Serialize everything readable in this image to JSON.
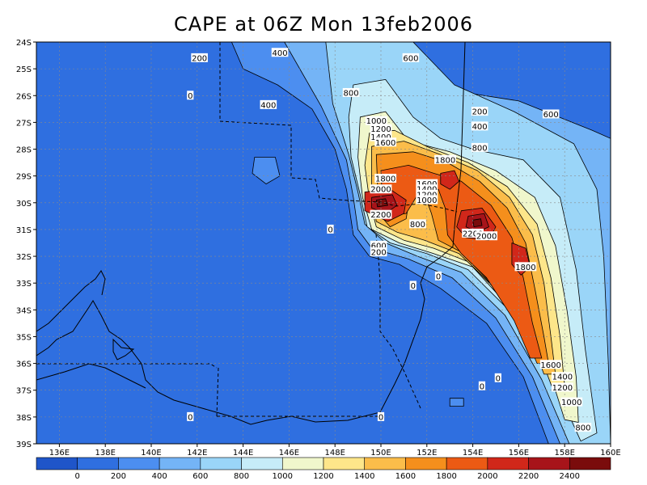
{
  "chart_data": {
    "type": "heatmap",
    "title": "CAPE at 06Z Mon 13feb2006",
    "xlabel": "",
    "ylabel": "",
    "x_ticks": [
      "136E",
      "138E",
      "140E",
      "142E",
      "144E",
      "146E",
      "148E",
      "150E",
      "152E",
      "154E",
      "156E",
      "158E",
      "160E"
    ],
    "y_ticks": [
      "24S",
      "25S",
      "26S",
      "27S",
      "28S",
      "29S",
      "30S",
      "31S",
      "32S",
      "33S",
      "34S",
      "35S",
      "36S",
      "37S",
      "38S",
      "39S"
    ],
    "xlim": [
      135,
      160
    ],
    "ylim": [
      -39,
      -24
    ],
    "grid": true,
    "colorbar": {
      "levels": [
        "0",
        "200",
        "400",
        "600",
        "800",
        "1000",
        "1200",
        "1400",
        "1600",
        "1800",
        "2000",
        "2200",
        "2400"
      ],
      "colors": [
        "#1f55c9",
        "#2f6fe0",
        "#4c8ef0",
        "#74b4f6",
        "#9ad5f8",
        "#c6ecf8",
        "#f0f7cc",
        "#fde68a",
        "#fbbd4a",
        "#f58f1c",
        "#ec5a14",
        "#d1271a",
        "#a7141a",
        "#7a0c0c"
      ]
    },
    "regions": [
      {
        "value": 0,
        "points": [
          [
            135,
            -39
          ],
          [
            160,
            -39
          ],
          [
            160,
            -24
          ],
          [
            135,
            -24
          ]
        ]
      },
      {
        "value": 200,
        "points": [
          [
            143.5,
            -24
          ],
          [
            150.2,
            -24
          ],
          [
            152.5,
            -26
          ],
          [
            155.2,
            -27
          ],
          [
            158.5,
            -28
          ],
          [
            160,
            -28.5
          ],
          [
            160,
            -39
          ],
          [
            157.3,
            -39
          ],
          [
            156.2,
            -36.5
          ],
          [
            154.6,
            -34.5
          ],
          [
            152.6,
            -33.2
          ],
          [
            150.8,
            -32.3
          ],
          [
            149.5,
            -32
          ],
          [
            148.8,
            -31.2
          ],
          [
            148.5,
            -29.5
          ],
          [
            148,
            -28
          ],
          [
            147,
            -26.5
          ],
          [
            145.5,
            -25.6
          ],
          [
            144,
            -25
          ]
        ]
      },
      {
        "value": 400,
        "points": [
          [
            145.8,
            -24
          ],
          [
            150.8,
            -24
          ],
          [
            153,
            -25.8
          ],
          [
            156,
            -26.2
          ],
          [
            159.2,
            -27.3
          ],
          [
            160,
            -27.6
          ],
          [
            160,
            -39
          ],
          [
            157.8,
            -39
          ],
          [
            156.6,
            -36.5
          ],
          [
            155,
            -34.3
          ],
          [
            153.1,
            -32.8
          ],
          [
            151.2,
            -32.1
          ],
          [
            149.6,
            -31.7
          ],
          [
            149,
            -31
          ],
          [
            148.8,
            -29.8
          ],
          [
            148.5,
            -28.4
          ],
          [
            147.4,
            -26.4
          ]
        ]
      },
      {
        "value": 600,
        "points": [
          [
            147.6,
            -24
          ],
          [
            151.4,
            -24
          ],
          [
            153.2,
            -25.6
          ],
          [
            155.8,
            -26.6
          ],
          [
            158.4,
            -27.8
          ],
          [
            159.4,
            -29.5
          ],
          [
            159.7,
            -32
          ],
          [
            159.9,
            -36
          ],
          [
            160,
            -39
          ],
          [
            158.2,
            -39
          ],
          [
            157,
            -36.6
          ],
          [
            155.4,
            -34.2
          ],
          [
            153.5,
            -32.6
          ],
          [
            151.6,
            -32
          ],
          [
            150.2,
            -31.5
          ],
          [
            149.3,
            -30.8
          ],
          [
            149,
            -29.6
          ],
          [
            148.6,
            -28.2
          ],
          [
            147.9,
            -26.3
          ]
        ]
      },
      {
        "value": 800,
        "points": [
          [
            148.8,
            -25.6
          ],
          [
            150.2,
            -25.4
          ],
          [
            151.4,
            -26.8
          ],
          [
            152.6,
            -27.6
          ],
          [
            154,
            -28
          ],
          [
            156.2,
            -28.4
          ],
          [
            157.8,
            -29.8
          ],
          [
            158.5,
            -32.5
          ],
          [
            158.9,
            -35.5
          ],
          [
            159.4,
            -38.6
          ],
          [
            158.7,
            -38.9
          ],
          [
            157.6,
            -36.8
          ],
          [
            155.8,
            -34.2
          ],
          [
            153.8,
            -32.5
          ],
          [
            152,
            -31.9
          ],
          [
            150.4,
            -31.5
          ],
          [
            149.4,
            -30.9
          ],
          [
            149.1,
            -29.7
          ],
          [
            148.7,
            -28.3
          ],
          [
            148.6,
            -26.8
          ]
        ]
      },
      {
        "value": 1000,
        "points": [
          [
            149.1,
            -26.8
          ],
          [
            150.2,
            -26.6
          ],
          [
            151.2,
            -27.7
          ],
          [
            153,
            -28.1
          ],
          [
            155,
            -28.8
          ],
          [
            156.7,
            -29.8
          ],
          [
            157.6,
            -31.6
          ],
          [
            158.1,
            -34
          ],
          [
            158.5,
            -36.5
          ],
          [
            158.6,
            -38.2
          ],
          [
            158,
            -38.1
          ],
          [
            157.3,
            -36.2
          ],
          [
            155.7,
            -34
          ],
          [
            154,
            -32.4
          ],
          [
            152.3,
            -31.9
          ],
          [
            150.8,
            -31.5
          ],
          [
            149.6,
            -31
          ],
          [
            149.2,
            -29.8
          ],
          [
            149,
            -28.3
          ]
        ]
      },
      {
        "value": 1200,
        "points": [
          [
            149.5,
            -27.4
          ],
          [
            150.6,
            -27.3
          ],
          [
            152,
            -27.9
          ],
          [
            153.8,
            -28.5
          ],
          [
            155.5,
            -29.4
          ],
          [
            156.8,
            -30.8
          ],
          [
            157.4,
            -32.8
          ],
          [
            157.8,
            -35
          ],
          [
            158,
            -36.9
          ],
          [
            157.5,
            -37
          ],
          [
            156.8,
            -35.4
          ],
          [
            155.4,
            -33.6
          ],
          [
            153.8,
            -32.2
          ],
          [
            152.3,
            -31.7
          ],
          [
            151,
            -31.4
          ],
          [
            149.8,
            -30.9
          ],
          [
            149.5,
            -29.9
          ],
          [
            149.3,
            -28.6
          ]
        ]
      },
      {
        "value": 1400,
        "points": [
          [
            149.6,
            -27.9
          ],
          [
            151,
            -27.7
          ],
          [
            152.6,
            -28.2
          ],
          [
            154.2,
            -28.8
          ],
          [
            155.6,
            -29.8
          ],
          [
            156.6,
            -31.2
          ],
          [
            157.1,
            -33
          ],
          [
            157.4,
            -35
          ],
          [
            157.6,
            -36.4
          ],
          [
            157.1,
            -36.4
          ],
          [
            156.4,
            -34.8
          ],
          [
            155,
            -33.2
          ],
          [
            153.4,
            -31.9
          ],
          [
            151.9,
            -31.4
          ],
          [
            150.7,
            -31.1
          ],
          [
            149.8,
            -30.7
          ],
          [
            149.6,
            -29.5
          ]
        ]
      },
      {
        "value": 1600,
        "points": [
          [
            149.8,
            -28.2
          ],
          [
            151.4,
            -28.1
          ],
          [
            152.9,
            -28.5
          ],
          [
            154.3,
            -29.2
          ],
          [
            155.5,
            -30.2
          ],
          [
            156.3,
            -31.5
          ],
          [
            156.7,
            -33.2
          ],
          [
            157.1,
            -35
          ],
          [
            157.3,
            -36
          ],
          [
            156.8,
            -36
          ],
          [
            156.1,
            -34.6
          ],
          [
            154.8,
            -33
          ],
          [
            153.4,
            -31.8
          ],
          [
            152.5,
            -31.4
          ],
          [
            152.2,
            -30.4
          ],
          [
            151.9,
            -29.7
          ],
          [
            151.3,
            -29.5
          ],
          [
            151.1,
            -30.6
          ],
          [
            150.4,
            -30.9
          ],
          [
            149.9,
            -30.4
          ]
        ]
      },
      {
        "value": 1800,
        "points": [
          [
            150,
            -28.8
          ],
          [
            151.2,
            -28.6
          ],
          [
            152.3,
            -28.9
          ],
          [
            153.5,
            -29.2
          ],
          [
            154.8,
            -30.1
          ],
          [
            155.7,
            -31.3
          ],
          [
            156.2,
            -32.8
          ],
          [
            156.6,
            -34.5
          ],
          [
            157,
            -35.8
          ],
          [
            156.5,
            -35.8
          ],
          [
            155.8,
            -34.4
          ],
          [
            154.6,
            -32.8
          ],
          [
            153.5,
            -31.9
          ],
          [
            152.9,
            -31.2
          ],
          [
            152.8,
            -30.2
          ],
          [
            152.5,
            -29.5
          ],
          [
            151.6,
            -29.7
          ],
          [
            151.1,
            -30.4
          ],
          [
            150.1,
            -30.5
          ]
        ]
      },
      {
        "value": 2000,
        "points": [
          [
            149.3,
            -29.6
          ],
          [
            150.4,
            -29.5
          ],
          [
            151.1,
            -29.9
          ],
          [
            151,
            -30.4
          ],
          [
            150.3,
            -30.7
          ],
          [
            149.3,
            -30.3
          ]
        ]
      },
      {
        "value": 2000,
        "points": [
          [
            153.5,
            -30.3
          ],
          [
            154.4,
            -30.2
          ],
          [
            155,
            -30.9
          ],
          [
            154.7,
            -31.4
          ],
          [
            153.7,
            -31.3
          ],
          [
            153.3,
            -30.9
          ]
        ]
      },
      {
        "value": 2000,
        "points": [
          [
            155.7,
            -31.5
          ],
          [
            156.3,
            -31.7
          ],
          [
            156.5,
            -32.4
          ],
          [
            156.1,
            -32.7
          ],
          [
            155.7,
            -32.3
          ]
        ]
      },
      {
        "value": 2000,
        "points": [
          [
            152.6,
            -28.9
          ],
          [
            153.2,
            -28.8
          ],
          [
            153.4,
            -29.2
          ],
          [
            153,
            -29.5
          ],
          [
            152.6,
            -29.3
          ]
        ]
      },
      {
        "value": 2200,
        "points": [
          [
            149.6,
            -29.8
          ],
          [
            150.5,
            -29.7
          ],
          [
            150.7,
            -30.1
          ],
          [
            150.2,
            -30.4
          ],
          [
            149.6,
            -30.2
          ]
        ]
      },
      {
        "value": 2200,
        "points": [
          [
            153.8,
            -30.5
          ],
          [
            154.5,
            -30.4
          ],
          [
            154.7,
            -30.9
          ],
          [
            154.2,
            -31.1
          ],
          [
            153.7,
            -30.9
          ]
        ]
      },
      {
        "value": 2400,
        "points": [
          [
            149.8,
            -29.9
          ],
          [
            150.2,
            -29.85
          ],
          [
            150.3,
            -30.1
          ],
          [
            149.85,
            -30.15
          ]
        ]
      },
      {
        "value": 2400,
        "points": [
          [
            154,
            -30.65
          ],
          [
            154.35,
            -30.6
          ],
          [
            154.4,
            -30.85
          ],
          [
            154.05,
            -30.9
          ]
        ]
      },
      {
        "value": 200,
        "points": [
          [
            144.5,
            -28.3
          ],
          [
            145.4,
            -28.3
          ],
          [
            145.6,
            -29
          ],
          [
            145,
            -29.3
          ],
          [
            144.4,
            -28.9
          ]
        ]
      },
      {
        "value": 200,
        "points": [
          [
            153,
            -37.3
          ],
          [
            153.6,
            -37.3
          ],
          [
            153.6,
            -37.6
          ],
          [
            153,
            -37.6
          ]
        ]
      }
    ],
    "contour_labels": [
      {
        "text": "200",
        "x": 142.1,
        "y": -24.6
      },
      {
        "text": "400",
        "x": 145.6,
        "y": -24.4
      },
      {
        "text": "600",
        "x": 151.3,
        "y": -24.6
      },
      {
        "text": "0",
        "x": 141.7,
        "y": -26.0
      },
      {
        "text": "400",
        "x": 145.1,
        "y": -26.35
      },
      {
        "text": "800",
        "x": 148.7,
        "y": -25.9
      },
      {
        "text": "200",
        "x": 154.3,
        "y": -26.6
      },
      {
        "text": "400",
        "x": 154.3,
        "y": -27.15
      },
      {
        "text": "600",
        "x": 157.4,
        "y": -26.7
      },
      {
        "text": "1000",
        "x": 149.8,
        "y": -26.95
      },
      {
        "text": "1200",
        "x": 150.0,
        "y": -27.25
      },
      {
        "text": "1400",
        "x": 150.0,
        "y": -27.55
      },
      {
        "text": "800",
        "x": 154.3,
        "y": -27.95
      },
      {
        "text": "1600",
        "x": 150.2,
        "y": -27.75
      },
      {
        "text": "1800",
        "x": 152.8,
        "y": -28.4
      },
      {
        "text": "1800",
        "x": 150.2,
        "y": -29.1
      },
      {
        "text": "2000",
        "x": 150.0,
        "y": -29.5
      },
      {
        "text": "1600",
        "x": 152.0,
        "y": -29.3
      },
      {
        "text": "1400",
        "x": 152.0,
        "y": -29.5
      },
      {
        "text": "1200",
        "x": 152.0,
        "y": -29.7
      },
      {
        "text": "1000",
        "x": 152.0,
        "y": -29.9
      },
      {
        "text": "2200",
        "x": 150.0,
        "y": -30.45
      },
      {
        "text": "800",
        "x": 151.6,
        "y": -30.8
      },
      {
        "text": "0",
        "x": 147.8,
        "y": -31.0
      },
      {
        "text": "2200",
        "x": 154.0,
        "y": -31.15
      },
      {
        "text": "2000",
        "x": 154.6,
        "y": -31.25
      },
      {
        "text": "600",
        "x": 149.9,
        "y": -31.6
      },
      {
        "text": "200",
        "x": 149.9,
        "y": -31.85
      },
      {
        "text": "1800",
        "x": 156.3,
        "y": -32.4
      },
      {
        "text": "0",
        "x": 152.5,
        "y": -32.75
      },
      {
        "text": "0",
        "x": 151.4,
        "y": -33.1
      },
      {
        "text": "1600",
        "x": 157.4,
        "y": -36.05
      },
      {
        "text": "1400",
        "x": 157.9,
        "y": -36.5
      },
      {
        "text": "1200",
        "x": 157.9,
        "y": -36.9
      },
      {
        "text": "0",
        "x": 155.1,
        "y": -36.55
      },
      {
        "text": "0",
        "x": 154.4,
        "y": -36.85
      },
      {
        "text": "1000",
        "x": 158.3,
        "y": -37.45
      },
      {
        "text": "0",
        "x": 141.7,
        "y": -38.0
      },
      {
        "text": "0",
        "x": 150.0,
        "y": -38.0
      },
      {
        "text": "800",
        "x": 158.8,
        "y": -38.4
      }
    ]
  }
}
